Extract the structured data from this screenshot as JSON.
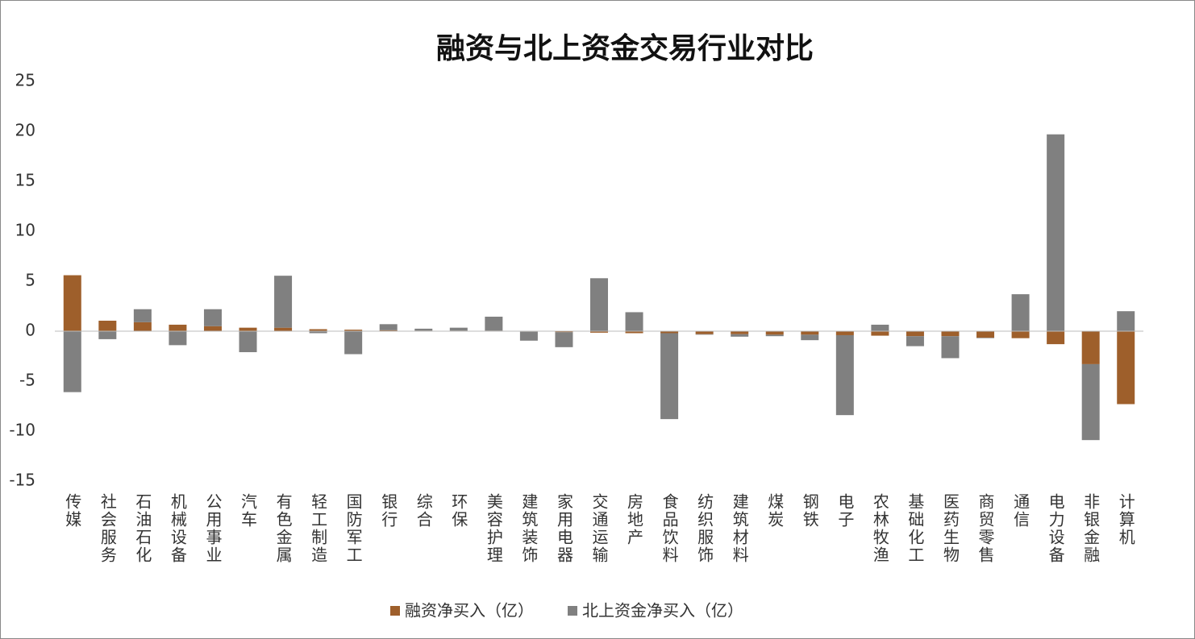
{
  "chart_data": {
    "type": "stacked-bar",
    "title": "融资与北上资金交易行业对比",
    "categories": [
      "传媒",
      "社会服务",
      "石油石化",
      "机械设备",
      "公用事业",
      "汽车",
      "有色金属",
      "轻工制造",
      "国防军工",
      "银行",
      "综合",
      "环保",
      "美容护理",
      "建筑装饰",
      "家用电器",
      "交通运输",
      "房地产",
      "食品饮料",
      "纺织服饰",
      "建筑材料",
      "煤炭",
      "钢铁",
      "电子",
      "农林牧渔",
      "基础化工",
      "医药生物",
      "商贸零售",
      "通信",
      "电力设备",
      "非银金融",
      "计算机"
    ],
    "series": [
      {
        "name": "融资净买入（亿）",
        "color": "#9e5f2b",
        "values": [
          5.6,
          1.05,
          0.9,
          0.65,
          0.5,
          0.35,
          0.35,
          0.2,
          0.15,
          0.1,
          0.05,
          0.05,
          0.05,
          -0.05,
          -0.1,
          -0.15,
          -0.2,
          -0.2,
          -0.3,
          -0.3,
          -0.35,
          -0.35,
          -0.4,
          -0.45,
          -0.5,
          -0.5,
          -0.65,
          -0.7,
          -1.3,
          -3.3,
          -7.3
        ]
      },
      {
        "name": "北上资金净买入（亿）",
        "color": "#808080",
        "values": [
          -6.1,
          -0.8,
          1.3,
          -1.4,
          1.7,
          -2.1,
          5.2,
          -0.2,
          -2.3,
          0.6,
          0.2,
          0.3,
          1.4,
          -0.9,
          -1.5,
          5.3,
          1.9,
          -8.6,
          -0.05,
          -0.25,
          -0.15,
          -0.55,
          -8.0,
          0.65,
          -1.0,
          -2.2,
          -0.05,
          3.7,
          19.7,
          -7.6,
          2.0
        ]
      }
    ],
    "ylim": [
      -15,
      25
    ],
    "yticks": [
      -15,
      -10,
      -5,
      0,
      5,
      10,
      15,
      20,
      25
    ],
    "legend": "bottom"
  }
}
